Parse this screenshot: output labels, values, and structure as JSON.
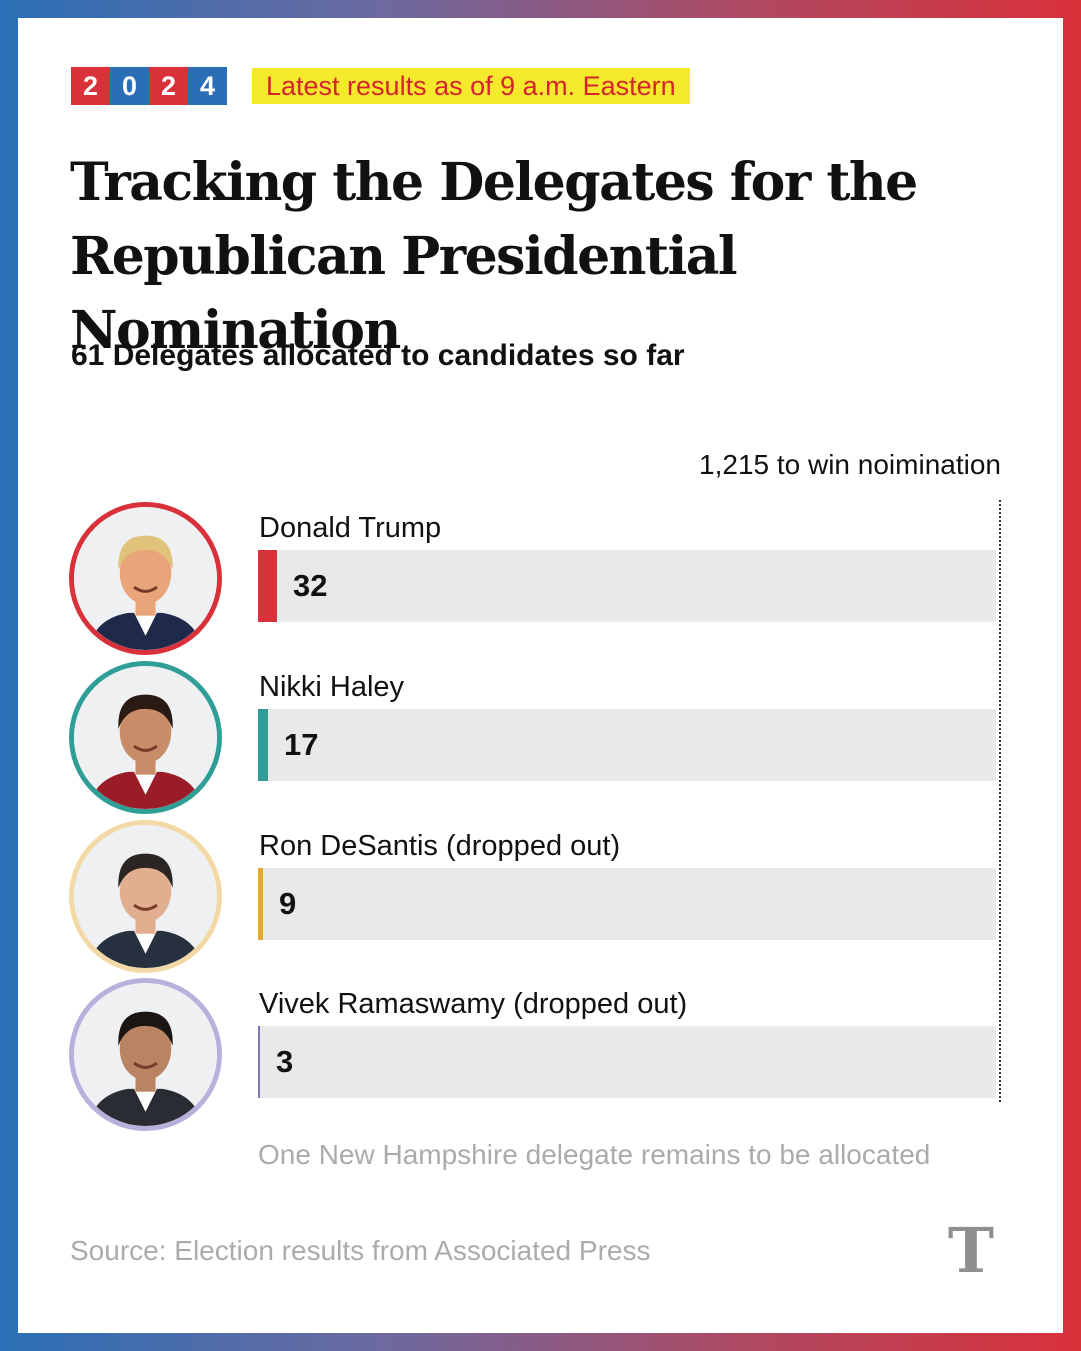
{
  "header": {
    "year_digits": [
      "2",
      "0",
      "2",
      "4"
    ],
    "year_colors": [
      "#d9313a",
      "#2a6fb5",
      "#d9313a",
      "#2a6fb5"
    ],
    "badge": "Latest results as of 9 a.m. Eastern",
    "title": "Tracking the Delegates for the Republican Presidential Nomination",
    "subtitle": "61 Delegates allocated to candidates so far"
  },
  "chart_data": {
    "type": "bar",
    "orientation": "horizontal",
    "categories": [
      "Donald Trump",
      "Nikki Haley",
      "Ron DeSantis (dropped out)",
      "Vivek Ramaswamy (dropped out)"
    ],
    "values": [
      32,
      17,
      9,
      3
    ],
    "colors": [
      "#d9313a",
      "#2e9e96",
      "#e5a92d",
      "#8275b6"
    ],
    "xlim": [
      0,
      1215
    ],
    "threshold": {
      "value": 1215,
      "label": "1,215 to win noimination"
    },
    "note": "One New Hampshire delegate remains to be allocated",
    "source": "Source: Election results from Associated Press"
  },
  "candidates": [
    {
      "ring_color": "#d9313a",
      "hair": "#e1c27a",
      "skin": "#e9a57a",
      "suit": "#1f2a4a",
      "bg": "#eef0f2"
    },
    {
      "ring_color": "#2e9e96",
      "hair": "#2a1a14",
      "skin": "#c98c68",
      "suit": "#9a1c28",
      "bg": "#eef0f2"
    },
    {
      "ring_color": "#f2d9a6",
      "hair": "#2b2623",
      "skin": "#e2ae90",
      "suit": "#27303f",
      "bg": "#eef0f2"
    },
    {
      "ring_color": "#b9b0dc",
      "hair": "#1b1514",
      "skin": "#b98462",
      "suit": "#2a2c33",
      "bg": "#eef0f2"
    }
  ],
  "logo": {
    "glyph": "T",
    "icon": "nyt-logo"
  }
}
